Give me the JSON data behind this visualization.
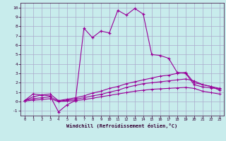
{
  "xlabel": "Windchill (Refroidissement éolien,°C)",
  "bg_color": "#c8ecec",
  "line_color": "#990099",
  "grid_color": "#aaaacc",
  "xlim": [
    -0.5,
    23.5
  ],
  "ylim": [
    -1.5,
    10.5
  ],
  "xticks": [
    0,
    1,
    2,
    3,
    4,
    5,
    6,
    7,
    8,
    9,
    10,
    11,
    12,
    13,
    14,
    15,
    16,
    17,
    18,
    19,
    20,
    21,
    22,
    23
  ],
  "yticks": [
    -1,
    0,
    1,
    2,
    3,
    4,
    5,
    6,
    7,
    8,
    9,
    10
  ],
  "line1_x": [
    0,
    1,
    2,
    3,
    4,
    5,
    6,
    7,
    8,
    9,
    10,
    11,
    12,
    13,
    14,
    15,
    16,
    17,
    18,
    19,
    20,
    21,
    22,
    23
  ],
  "line1_y": [
    0.1,
    0.8,
    0.7,
    0.6,
    -1.1,
    -0.35,
    0.1,
    7.8,
    6.8,
    7.5,
    7.3,
    9.7,
    9.2,
    9.9,
    9.3,
    5.0,
    4.9,
    4.6,
    3.1,
    3.0,
    1.8,
    1.55,
    1.45,
    1.35
  ],
  "line2_x": [
    0,
    1,
    2,
    3,
    4,
    5,
    6,
    7,
    8,
    9,
    10,
    11,
    12,
    13,
    14,
    15,
    16,
    17,
    18,
    19,
    20,
    21,
    22,
    23
  ],
  "line2_y": [
    0.1,
    0.5,
    0.7,
    0.8,
    0.1,
    0.25,
    0.4,
    0.6,
    0.9,
    1.1,
    1.4,
    1.6,
    1.9,
    2.1,
    2.3,
    2.5,
    2.7,
    2.8,
    3.0,
    3.1,
    2.0,
    1.8,
    1.6,
    1.4
  ],
  "line3_x": [
    0,
    1,
    2,
    3,
    4,
    5,
    6,
    7,
    8,
    9,
    10,
    11,
    12,
    13,
    14,
    15,
    16,
    17,
    18,
    19,
    20,
    21,
    22,
    23
  ],
  "line3_y": [
    0.1,
    0.3,
    0.4,
    0.5,
    0.05,
    0.15,
    0.25,
    0.4,
    0.6,
    0.75,
    1.0,
    1.2,
    1.5,
    1.7,
    1.9,
    2.0,
    2.1,
    2.2,
    2.3,
    2.4,
    2.2,
    1.8,
    1.6,
    1.2
  ],
  "line4_x": [
    0,
    1,
    2,
    3,
    4,
    5,
    6,
    7,
    8,
    9,
    10,
    11,
    12,
    13,
    14,
    15,
    16,
    17,
    18,
    19,
    20,
    21,
    22,
    23
  ],
  "line4_y": [
    0.05,
    0.15,
    0.2,
    0.3,
    0.0,
    0.05,
    0.1,
    0.2,
    0.35,
    0.5,
    0.65,
    0.8,
    0.95,
    1.1,
    1.2,
    1.3,
    1.35,
    1.4,
    1.45,
    1.5,
    1.4,
    1.1,
    0.95,
    0.8
  ]
}
